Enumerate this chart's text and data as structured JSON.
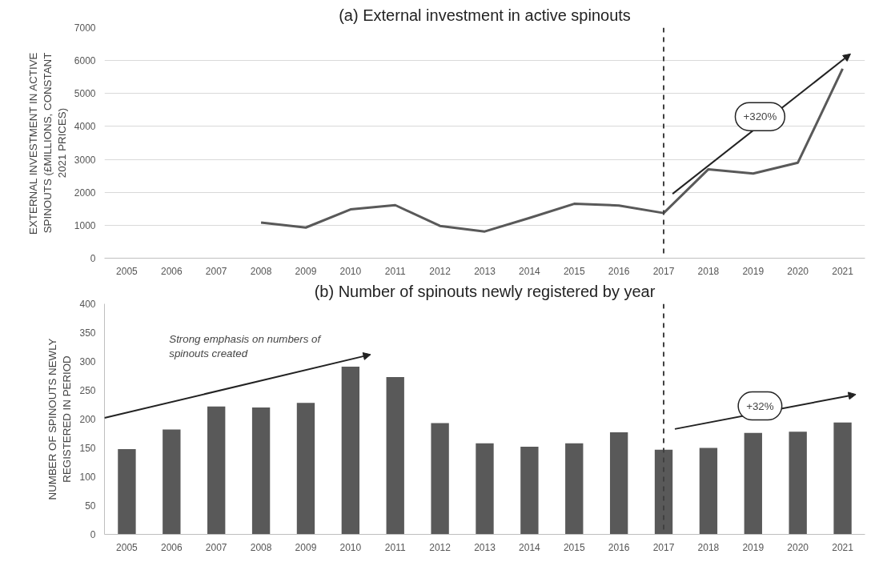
{
  "chart_data": [
    {
      "type": "line",
      "title": "(a) External investment in active spinouts",
      "ylabel": "EXTERNAL INVESTMENT IN ACTIVE SPINOUTS (£MILLIONS, CONSTANT 2021 PRICES)",
      "categories": [
        "2005",
        "2006",
        "2007",
        "2008",
        "2009",
        "2010",
        "2011",
        "2012",
        "2013",
        "2014",
        "2015",
        "2016",
        "2017",
        "2018",
        "2019",
        "2020",
        "2021"
      ],
      "series": [
        {
          "color": "#595959",
          "values": [
            null,
            null,
            null,
            1080,
            930,
            1480,
            1610,
            980,
            810,
            1220,
            1650,
            1600,
            1370,
            2700,
            2570,
            2900,
            5750
          ]
        }
      ],
      "ylim": [
        0,
        7000
      ],
      "yticks": [
        0,
        1000,
        2000,
        3000,
        4000,
        5000,
        6000,
        7000
      ],
      "grid": "y",
      "marker": "none",
      "line_style": "solid",
      "ref_lines": [
        {
          "axis": "x",
          "value": "2017",
          "line_style": "dashed",
          "color": "#404040"
        }
      ],
      "annotations": [
        "+320%"
      ]
    },
    {
      "type": "bar",
      "title": "(b) Number of spinouts newly registered by year",
      "ylabel": "NUMBER OF SPINOUTS NEWLY REGISTERED IN PERIOD",
      "categories": [
        "2005",
        "2006",
        "2007",
        "2008",
        "2009",
        "2010",
        "2011",
        "2012",
        "2013",
        "2014",
        "2015",
        "2016",
        "2017",
        "2018",
        "2019",
        "2020",
        "2021"
      ],
      "series": [
        {
          "color": "#595959",
          "values": [
            148,
            182,
            222,
            220,
            228,
            291,
            273,
            193,
            158,
            152,
            158,
            177,
            147,
            150,
            176,
            178,
            194
          ]
        }
      ],
      "ylim": [
        0,
        400
      ],
      "yticks": [
        0,
        50,
        100,
        150,
        200,
        250,
        300,
        350,
        400
      ],
      "grid": false,
      "ref_lines": [
        {
          "axis": "x",
          "value": "2017",
          "line_style": "dashed",
          "color": "#404040"
        }
      ],
      "annotations": [
        "Strong emphasis on numbers of spinouts created",
        "+32%"
      ]
    }
  ]
}
